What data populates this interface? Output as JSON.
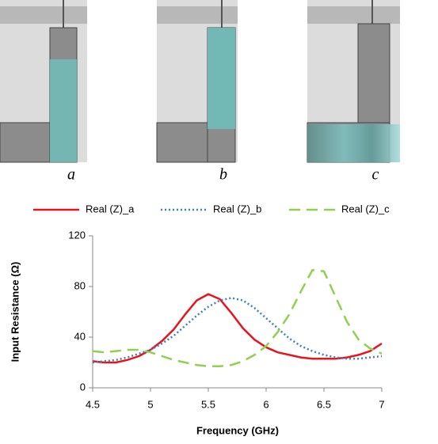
{
  "panels": {
    "labels": [
      "a",
      "b",
      "c"
    ]
  },
  "chart_data": {
    "type": "line",
    "x_label": "Frequency (GHz)",
    "y_label": "Input Resistance (Ω)",
    "x": [
      4.5,
      4.6,
      4.7,
      4.8,
      4.9,
      5.0,
      5.1,
      5.2,
      5.3,
      5.4,
      5.5,
      5.6,
      5.7,
      5.8,
      5.9,
      6.0,
      6.1,
      6.2,
      6.3,
      6.4,
      6.5,
      6.6,
      6.7,
      6.8,
      6.9,
      7.0
    ],
    "series": [
      {
        "name": "Real (Z)_a",
        "color": "#e8141b",
        "dash": "solid",
        "values": [
          21,
          20,
          20,
          22,
          25,
          30,
          37,
          46,
          58,
          69,
          74,
          70,
          59,
          47,
          38,
          32,
          28,
          26,
          24,
          23,
          23,
          23,
          24,
          26,
          29,
          35
        ]
      },
      {
        "name": "Real (Z)_b",
        "color": "#3f7fbf",
        "dash": "dotted",
        "values": [
          20,
          21,
          22,
          24,
          27,
          30,
          35,
          41,
          49,
          57,
          64,
          69,
          71,
          69,
          63,
          55,
          47,
          39,
          33,
          29,
          26,
          24,
          23,
          23,
          24,
          25
        ]
      },
      {
        "name": "Real (Z)_c",
        "color": "#8fd14f",
        "dash": "dashed",
        "values": [
          29,
          28,
          29,
          30,
          30,
          28,
          25,
          22,
          20,
          18,
          17,
          17,
          18,
          21,
          26,
          33,
          44,
          58,
          76,
          93,
          92,
          72,
          52,
          38,
          31,
          27
        ]
      }
    ],
    "xlim": [
      4.5,
      7
    ],
    "xticks": [
      4.5,
      5,
      5.5,
      6,
      6.5,
      7
    ],
    "ylim": [
      0,
      120
    ],
    "yticks": [
      0,
      40,
      80,
      120
    ],
    "grid": false
  }
}
